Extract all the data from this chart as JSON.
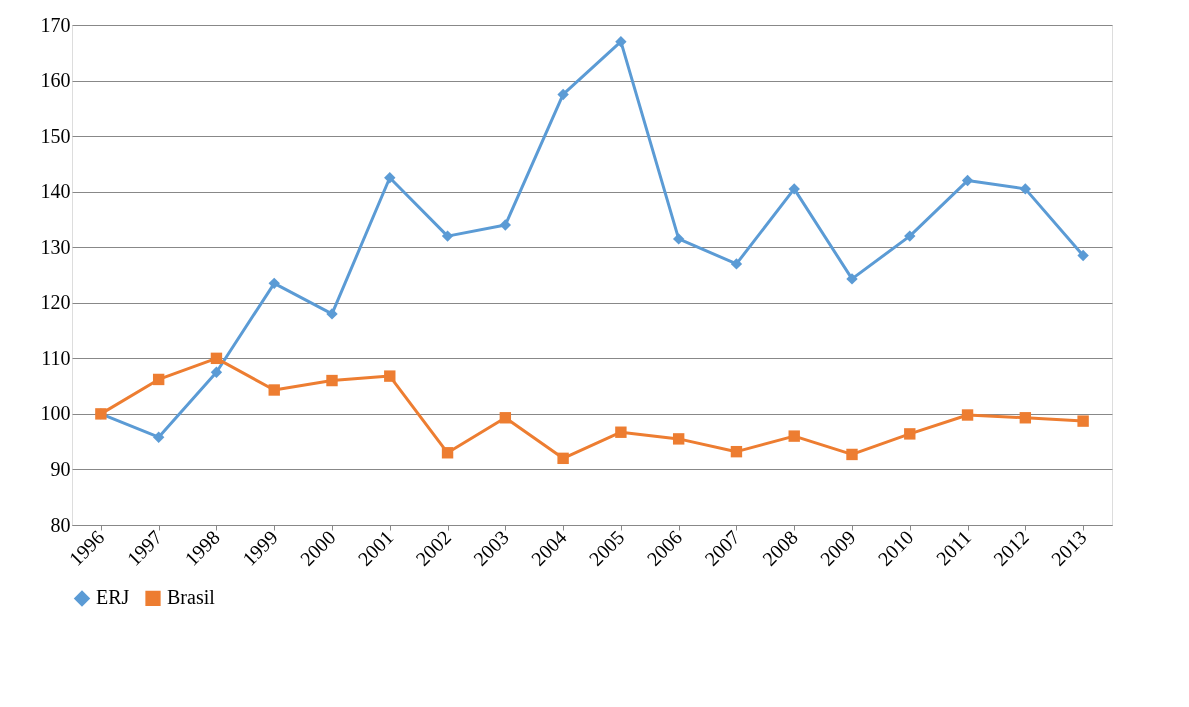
{
  "chart_data": {
    "type": "line",
    "categories": [
      "1996",
      "1997",
      "1998",
      "1999",
      "2000",
      "2001",
      "2002",
      "2003",
      "2004",
      "2005",
      "2006",
      "2007",
      "2008",
      "2009",
      "2010",
      "2011",
      "2012",
      "2013"
    ],
    "series": [
      {
        "name": "ERJ",
        "color": "#5b9bd5",
        "marker": "diamond",
        "values": [
          100,
          95.8,
          107.5,
          123.5,
          118,
          142.5,
          132,
          134,
          157.5,
          167,
          131.5,
          127,
          140.5,
          124.3,
          132,
          142,
          140.5,
          128.5
        ]
      },
      {
        "name": "Brasil",
        "color": "#ed7d31",
        "marker": "square",
        "values": [
          100,
          106.2,
          110,
          104.3,
          106,
          106.8,
          93,
          99.3,
          92,
          96.7,
          95.5,
          93.2,
          96,
          92.7,
          96.4,
          99.8,
          99.3,
          98.7
        ]
      }
    ],
    "ylim": [
      80,
      170
    ],
    "yticks": [
      80,
      90,
      100,
      110,
      120,
      130,
      140,
      150,
      160,
      170
    ],
    "grid": "y",
    "legend": "bottom",
    "line_style": "solid"
  }
}
